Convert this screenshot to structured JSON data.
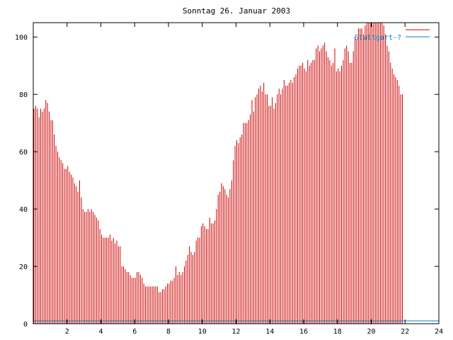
{
  "chart_data": {
    "type": "bar",
    "title": "Sonntag 26. Januar 2003",
    "xlabel": "",
    "ylabel": "",
    "xlim": [
      0,
      24
    ],
    "ylim": [
      0,
      105
    ],
    "x_ticks": [
      2,
      4,
      6,
      8,
      10,
      12,
      14,
      16,
      18,
      20,
      22,
      24
    ],
    "y_ticks": [
      0,
      20,
      40,
      60,
      80,
      100
    ],
    "grid": false,
    "legend_position": "top-right",
    "series": [
      {
        "name": "",
        "color": "#cc0000",
        "sample_interval_hours": 0.1,
        "values": [
          75,
          76,
          75,
          72,
          75,
          74,
          75,
          78,
          77,
          74,
          71,
          71,
          66,
          62,
          60,
          58,
          57,
          56,
          54,
          54,
          55,
          53,
          52,
          51,
          49,
          48,
          46,
          50,
          44,
          40,
          39,
          39,
          40,
          39,
          40,
          39,
          38,
          37,
          36,
          33,
          31,
          30,
          30,
          30,
          30,
          31,
          29,
          30,
          28,
          29,
          27,
          27,
          20,
          20,
          19,
          18,
          18,
          17,
          16,
          16,
          16,
          18,
          18,
          17,
          16,
          14,
          13,
          13,
          13,
          13,
          13,
          13,
          13,
          13,
          11,
          11,
          12,
          12,
          13,
          14,
          14,
          15,
          15,
          16,
          20,
          17,
          18,
          17,
          18,
          20,
          22,
          24,
          27,
          25,
          24,
          25,
          29,
          30,
          30,
          34,
          35,
          34,
          33,
          33,
          37,
          35,
          35,
          36,
          40,
          45,
          46,
          49,
          48,
          47,
          45,
          44,
          47,
          50,
          57,
          62,
          64,
          63,
          65,
          66,
          70,
          70,
          70,
          71,
          73,
          78,
          74,
          79,
          80,
          82,
          83,
          81,
          84,
          80,
          80,
          76,
          76,
          79,
          75,
          77,
          80,
          82,
          80,
          82,
          85,
          83,
          83,
          84,
          85,
          84,
          86,
          87,
          89,
          90,
          90,
          91,
          89,
          88,
          92,
          90,
          91,
          92,
          92,
          96,
          97,
          95,
          96,
          97,
          98,
          95,
          93,
          92,
          90,
          91,
          96,
          88,
          89,
          88,
          90,
          92,
          96,
          97,
          95,
          91,
          91,
          95,
          100,
          99,
          103,
          103,
          103,
          101,
          104,
          105,
          105,
          105,
          105,
          105,
          105,
          105,
          105,
          105,
          105,
          104,
          101,
          97,
          95,
          91,
          89,
          87,
          86,
          85,
          83,
          80,
          80
        ]
      },
      {
        "name": "Stuttgart-?",
        "color": "#0080c0",
        "values": [
          1,
          1
        ]
      }
    ],
    "legend": [
      "",
      "Stuttgart-?"
    ]
  },
  "colors": {
    "background": "#ffffff",
    "axis": "#000000",
    "series_primary": "#cc0000",
    "series_secondary": "#0080c0"
  }
}
